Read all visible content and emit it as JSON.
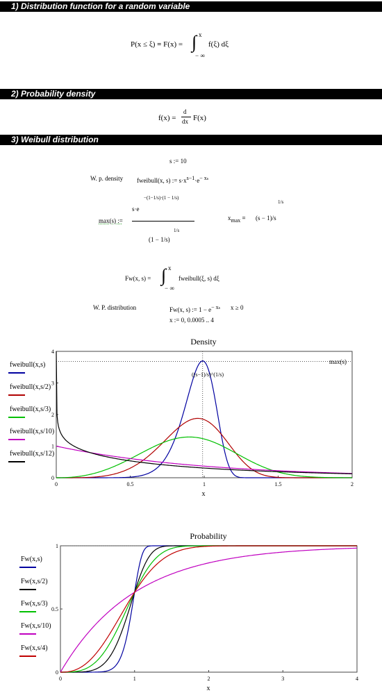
{
  "sections": [
    {
      "label": "1) Distribution function for a random variable"
    },
    {
      "label": "2) Probability density"
    },
    {
      "label": "3) Weibull distribution"
    }
  ],
  "eq": {
    "cdf_lhs": "P(x ≤ ξ)",
    "cdf_eq": "=",
    "cdf_mid": "F(x) =",
    "cdf_int": "∫",
    "cdf_upper": "x",
    "cdf_lower": "− ∞",
    "cdf_integrand": "f(ξ) dξ",
    "pdf_lhs": "f(x) =",
    "pdf_d": "d",
    "pdf_dx": "dx",
    "pdf_rhs": "F(x)",
    "s_def": "s := 10",
    "density_label": "W. p. density",
    "density_def": "fweibull(x, s) := s·x",
    "density_exp": "s−1",
    "density_tail": "·e",
    "density_exp2": "− x",
    "density_exp3": "s",
    "max_lhs": "max(s) :=",
    "max_num": "s·e",
    "max_num_exp": "−(1−1/s)·(1 − 1/s)",
    "max_den": "(1 − 1/s)",
    "max_den_exp": "1/s",
    "xmax_lhs": "x",
    "xmax_sub": "max",
    "xmax_eq": "=",
    "xmax_rhs": "(s − 1)/s",
    "xmax_exp": "1/s",
    "fw_lhs": "Fw(x, s) =",
    "fw_int": "∫",
    "fw_upper": "x",
    "fw_lower": "− ∞",
    "fw_integrand": "fweibull(ξ, s) dξ",
    "dist_label": "W. P. distribution",
    "dist_def": "Fw(x, s) := 1 − e",
    "dist_exp": "− x",
    "dist_exp2": "s",
    "dist_cond": "x ≥ 0",
    "range_def": "x := 0, 0.0005 .. 4"
  },
  "chart_data": [
    {
      "type": "line",
      "title": "Density",
      "xlabel": "x",
      "xlim": [
        0,
        2
      ],
      "ylim": [
        0,
        4
      ],
      "x_ticks": [
        "0",
        "0.5",
        "1",
        "1.5",
        "2"
      ],
      "y_ticks": [
        "0",
        "1",
        "2",
        "3",
        "4"
      ],
      "series": [
        {
          "name": "fweibull(x,s)",
          "param": 10,
          "color": "#0000a0"
        },
        {
          "name": "fweibull(x,s/2)",
          "param": 5,
          "color": "#b00000"
        },
        {
          "name": "fweibull(x,s/3)",
          "param": 3.333,
          "color": "#00c000"
        },
        {
          "name": "fweibull(x,s/10)",
          "param": 1,
          "color": "#c000c0"
        },
        {
          "name": "fweibull(x,s/12)",
          "param": 0.833,
          "color": "#000000"
        }
      ],
      "markers": {
        "hline_label": "max(s)",
        "hline_value": 3.68,
        "vline_label": "((s−1)/s)^(1/s)",
        "vline_value": 0.989
      }
    },
    {
      "type": "line",
      "title": "Probability",
      "xlabel": "x",
      "xlim": [
        0,
        4
      ],
      "ylim": [
        0,
        1
      ],
      "x_ticks": [
        "0",
        "1",
        "2",
        "3",
        "4"
      ],
      "y_ticks": [
        "0",
        "0.5",
        "1"
      ],
      "series": [
        {
          "name": "Fw(x,s)",
          "param": 10,
          "color": "#0000a0"
        },
        {
          "name": "Fw(x,s/2)",
          "param": 5,
          "color": "#000000"
        },
        {
          "name": "Fw(x,s/3)",
          "param": 3.333,
          "color": "#00c000"
        },
        {
          "name": "Fw(x,s/10)",
          "param": 1,
          "color": "#c000c0"
        },
        {
          "name": "Fw(x,s/4)",
          "param": 2.5,
          "color": "#c00000"
        }
      ],
      "markers": {
        "hline_value": 1
      }
    }
  ]
}
